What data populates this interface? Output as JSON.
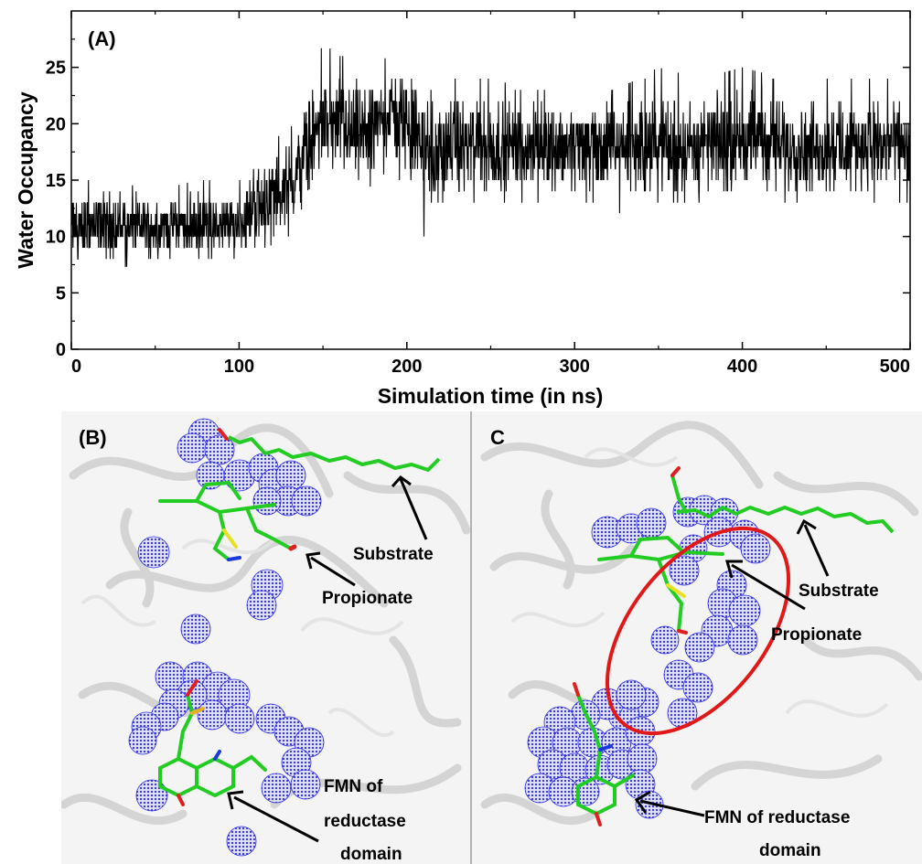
{
  "panel_a": {
    "label": "(A)"
  },
  "chart_data": {
    "type": "line",
    "title": "",
    "xlabel": "Simulation time (in ns)",
    "ylabel": "Water Occupancy",
    "xlim": [
      0,
      500
    ],
    "ylim": [
      0,
      30
    ],
    "xticks": [
      0,
      100,
      200,
      300,
      400,
      500
    ],
    "yticks": [
      0,
      5,
      10,
      15,
      20,
      25
    ],
    "grid": false,
    "legend": "none",
    "series": [
      {
        "color": "#000000",
        "x": [
          0,
          25,
          50,
          75,
          100,
          110,
          125,
          133,
          140,
          150,
          175,
          190,
          200,
          215,
          225,
          250,
          275,
          300,
          325,
          350,
          375,
          400,
          425,
          450,
          475,
          500
        ],
        "mean": [
          11,
          11,
          11,
          11,
          11,
          13,
          14,
          15,
          18,
          20,
          19,
          21,
          20,
          17,
          18,
          18,
          18,
          18,
          18,
          18,
          18,
          19,
          18,
          18,
          18,
          18
        ],
        "range_min": [
          8,
          7,
          8,
          8,
          8,
          8,
          10,
          10,
          14,
          15,
          14,
          16,
          14,
          8,
          13,
          13,
          13,
          13,
          12,
          13,
          13,
          14,
          13,
          13,
          13,
          13
        ],
        "range_max": [
          15,
          15,
          14,
          15,
          15,
          18,
          19,
          20,
          24,
          27,
          25,
          26,
          26,
          23,
          24,
          24,
          23,
          24,
          23,
          25,
          24,
          25,
          24,
          24,
          24,
          24
        ]
      }
    ]
  },
  "panel_b": {
    "label": "(B)",
    "annotations": {
      "substrate": "Substrate",
      "propionate": "Propionate",
      "fmn_line1": "FMN of",
      "fmn_line2": "reductase",
      "fmn_line3": "domain"
    }
  },
  "panel_c": {
    "label": "C",
    "annotations": {
      "substrate": "Substrate",
      "propionate": "Propionate",
      "fmn_line1": "FMN of reductase",
      "fmn_line2": "domain"
    }
  },
  "colors": {
    "water_spheres": "#2a2ae6",
    "substrate_chain": "#22cc22",
    "highlight_ellipse": "#e01818",
    "protein_ribbon": "#c8c8c8",
    "trace": "#000000"
  }
}
